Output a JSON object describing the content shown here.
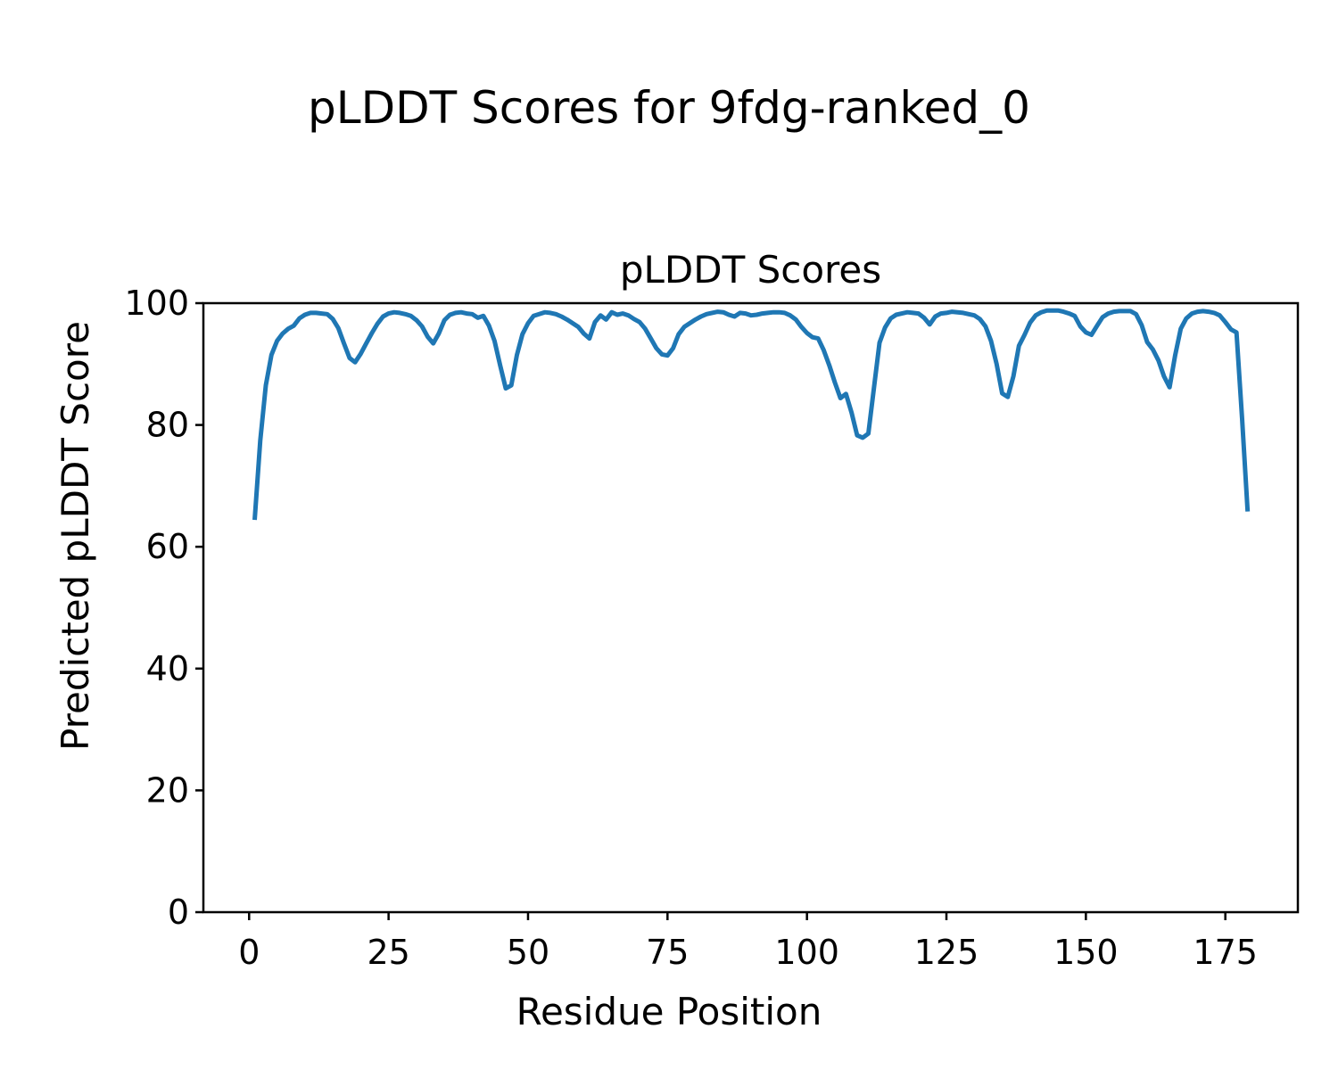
{
  "figure": {
    "suptitle": "pLDDT Scores for 9fdg-ranked_0"
  },
  "chart_data": {
    "type": "line",
    "title": "pLDDT Scores",
    "xlabel": "Residue Position",
    "ylabel": "Predicted pLDDT Score",
    "xlim": [
      -8.2,
      188.0
    ],
    "ylim": [
      0,
      100
    ],
    "x_ticks": [
      0,
      25,
      50,
      75,
      100,
      125,
      150,
      175
    ],
    "y_ticks": [
      0,
      20,
      40,
      60,
      80,
      100
    ],
    "grid": false,
    "legend": "none",
    "line_color": "#1f77b4",
    "frame_color": "#000000",
    "series": [
      {
        "name": "pLDDT",
        "x": [
          1,
          2,
          3,
          4,
          5,
          6,
          7,
          8,
          9,
          10,
          11,
          12,
          13,
          14,
          15,
          16,
          17,
          18,
          19,
          20,
          21,
          22,
          23,
          24,
          25,
          26,
          27,
          28,
          29,
          30,
          31,
          32,
          33,
          34,
          35,
          36,
          37,
          38,
          39,
          40,
          41,
          42,
          43,
          44,
          45,
          46,
          47,
          48,
          49,
          50,
          51,
          52,
          53,
          54,
          55,
          56,
          57,
          58,
          59,
          60,
          61,
          62,
          63,
          64,
          65,
          66,
          67,
          68,
          69,
          70,
          71,
          72,
          73,
          74,
          75,
          76,
          77,
          78,
          79,
          80,
          81,
          82,
          83,
          84,
          85,
          86,
          87,
          88,
          89,
          90,
          91,
          92,
          93,
          94,
          95,
          96,
          97,
          98,
          99,
          100,
          101,
          102,
          103,
          104,
          105,
          106,
          107,
          108,
          109,
          110,
          111,
          112,
          113,
          114,
          115,
          116,
          117,
          118,
          119,
          120,
          121,
          122,
          123,
          124,
          125,
          126,
          127,
          128,
          129,
          130,
          131,
          132,
          133,
          134,
          135,
          136,
          137,
          138,
          139,
          140,
          141,
          142,
          143,
          144,
          145,
          146,
          147,
          148,
          149,
          150,
          151,
          152,
          153,
          154,
          155,
          156,
          157,
          158,
          159,
          160,
          161,
          162,
          163,
          164,
          165,
          166,
          167,
          168,
          169,
          170,
          171,
          172,
          173,
          174,
          175,
          176,
          177,
          178,
          179
        ],
        "y": [
          64.4,
          77.5,
          86.5,
          91.5,
          93.8,
          95.0,
          95.8,
          96.3,
          97.5,
          98.1,
          98.4,
          98.4,
          98.3,
          98.2,
          97.4,
          95.9,
          93.4,
          91.0,
          90.3,
          91.7,
          93.4,
          95.1,
          96.6,
          97.8,
          98.3,
          98.5,
          98.4,
          98.2,
          97.9,
          97.2,
          96.2,
          94.5,
          93.4,
          95.0,
          97.2,
          98.1,
          98.4,
          98.5,
          98.3,
          98.2,
          97.6,
          97.9,
          96.3,
          93.8,
          89.8,
          86.0,
          86.5,
          91.5,
          94.9,
          96.7,
          97.9,
          98.2,
          98.5,
          98.4,
          98.2,
          97.8,
          97.3,
          96.7,
          96.1,
          95.0,
          94.2,
          96.9,
          98.0,
          97.3,
          98.5,
          98.1,
          98.3,
          98.0,
          97.4,
          96.9,
          95.8,
          94.2,
          92.6,
          91.6,
          91.4,
          92.6,
          94.9,
          96.1,
          96.7,
          97.3,
          97.8,
          98.2,
          98.4,
          98.6,
          98.5,
          98.1,
          97.8,
          98.4,
          98.3,
          98.0,
          98.1,
          98.3,
          98.4,
          98.5,
          98.5,
          98.4,
          98.0,
          97.3,
          96.1,
          95.1,
          94.4,
          94.2,
          92.3,
          89.8,
          87.0,
          84.4,
          85.1,
          82.0,
          78.3,
          77.9,
          78.6,
          86.0,
          93.5,
          96.0,
          97.5,
          98.1,
          98.3,
          98.5,
          98.4,
          98.3,
          97.6,
          96.5,
          97.8,
          98.3,
          98.4,
          98.6,
          98.5,
          98.4,
          98.2,
          98.0,
          97.4,
          96.2,
          93.8,
          90.0,
          85.2,
          84.6,
          88.0,
          93.0,
          94.8,
          96.8,
          98.0,
          98.5,
          98.8,
          98.8,
          98.8,
          98.6,
          98.3,
          97.9,
          96.2,
          95.2,
          94.8,
          96.3,
          97.7,
          98.3,
          98.6,
          98.7,
          98.7,
          98.7,
          98.2,
          96.4,
          93.6,
          92.4,
          90.6,
          88.0,
          86.2,
          91.4,
          95.8,
          97.5,
          98.3,
          98.6,
          98.7,
          98.6,
          98.4,
          98.0,
          96.9,
          95.7,
          95.2,
          81.0,
          65.8
        ]
      }
    ]
  }
}
